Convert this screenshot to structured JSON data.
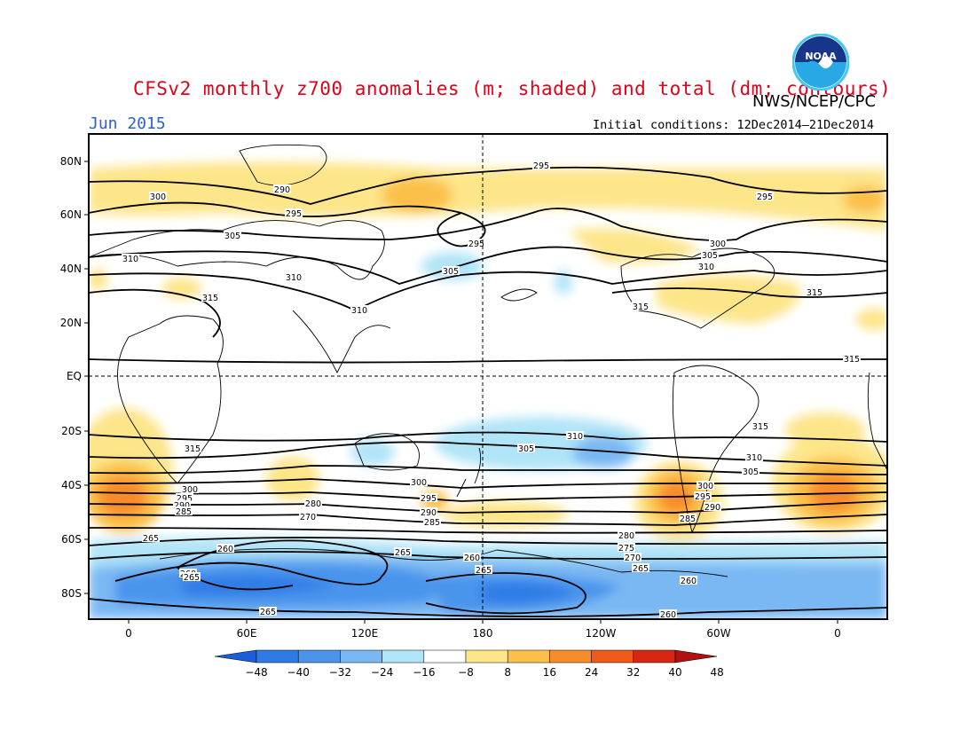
{
  "header": {
    "title": "CFSv2 monthly z700 anomalies (m; shaded) and total (dm; contours)",
    "agency": "NWS/NCEP/CPC",
    "period": "Jun 2015",
    "initial_conditions": "Initial conditions: 12Dec2014–21Dec2014",
    "logo_text": "NOAA"
  },
  "axes": {
    "lat_ticks": [
      "80N",
      "60N",
      "40N",
      "20N",
      "EQ",
      "20S",
      "40S",
      "60S",
      "80S"
    ],
    "lon_ticks": [
      "0",
      "60E",
      "120E",
      "180",
      "120W",
      "60W",
      "0"
    ]
  },
  "colorbar": {
    "labels": [
      "−48",
      "−40",
      "−32",
      "−24",
      "−16",
      "−8",
      "8",
      "16",
      "24",
      "32",
      "40",
      "48"
    ],
    "colors": [
      "#1a5fd9",
      "#2e7be6",
      "#4a94ec",
      "#7ab8f3",
      "#b0e4f7",
      "#ffffff",
      "#fde589",
      "#fbc04a",
      "#f88c2a",
      "#f05a1a",
      "#d92613",
      "#b01010"
    ]
  },
  "contour_labels": [
    {
      "v": "295"
    },
    {
      "v": "290"
    },
    {
      "v": "300"
    },
    {
      "v": "295"
    },
    {
      "v": "305"
    },
    {
      "v": "295"
    },
    {
      "v": "295"
    },
    {
      "v": "300"
    },
    {
      "v": "305"
    },
    {
      "v": "310"
    },
    {
      "v": "310"
    },
    {
      "v": "310"
    },
    {
      "v": "305"
    },
    {
      "v": "315"
    },
    {
      "v": "310"
    },
    {
      "v": "315"
    },
    {
      "v": "315"
    },
    {
      "v": "315"
    },
    {
      "v": "315"
    },
    {
      "v": "310"
    },
    {
      "v": "305"
    },
    {
      "v": "315"
    },
    {
      "v": "310"
    },
    {
      "v": "305"
    },
    {
      "v": "300"
    },
    {
      "v": "295"
    },
    {
      "v": "290"
    },
    {
      "v": "285"
    },
    {
      "v": "300"
    },
    {
      "v": "295"
    },
    {
      "v": "290"
    },
    {
      "v": "285"
    },
    {
      "v": "280"
    },
    {
      "v": "270"
    },
    {
      "v": "265"
    },
    {
      "v": "280"
    },
    {
      "v": "275"
    },
    {
      "v": "270"
    },
    {
      "v": "265"
    },
    {
      "v": "260"
    },
    {
      "v": "260"
    },
    {
      "v": "265"
    },
    {
      "v": "260"
    },
    {
      "v": "260"
    },
    {
      "v": "265"
    },
    {
      "v": "265"
    },
    {
      "v": "265"
    },
    {
      "v": "260"
    },
    {
      "v": "300"
    },
    {
      "v": "295"
    },
    {
      "v": "290"
    },
    {
      "v": "285"
    }
  ]
}
